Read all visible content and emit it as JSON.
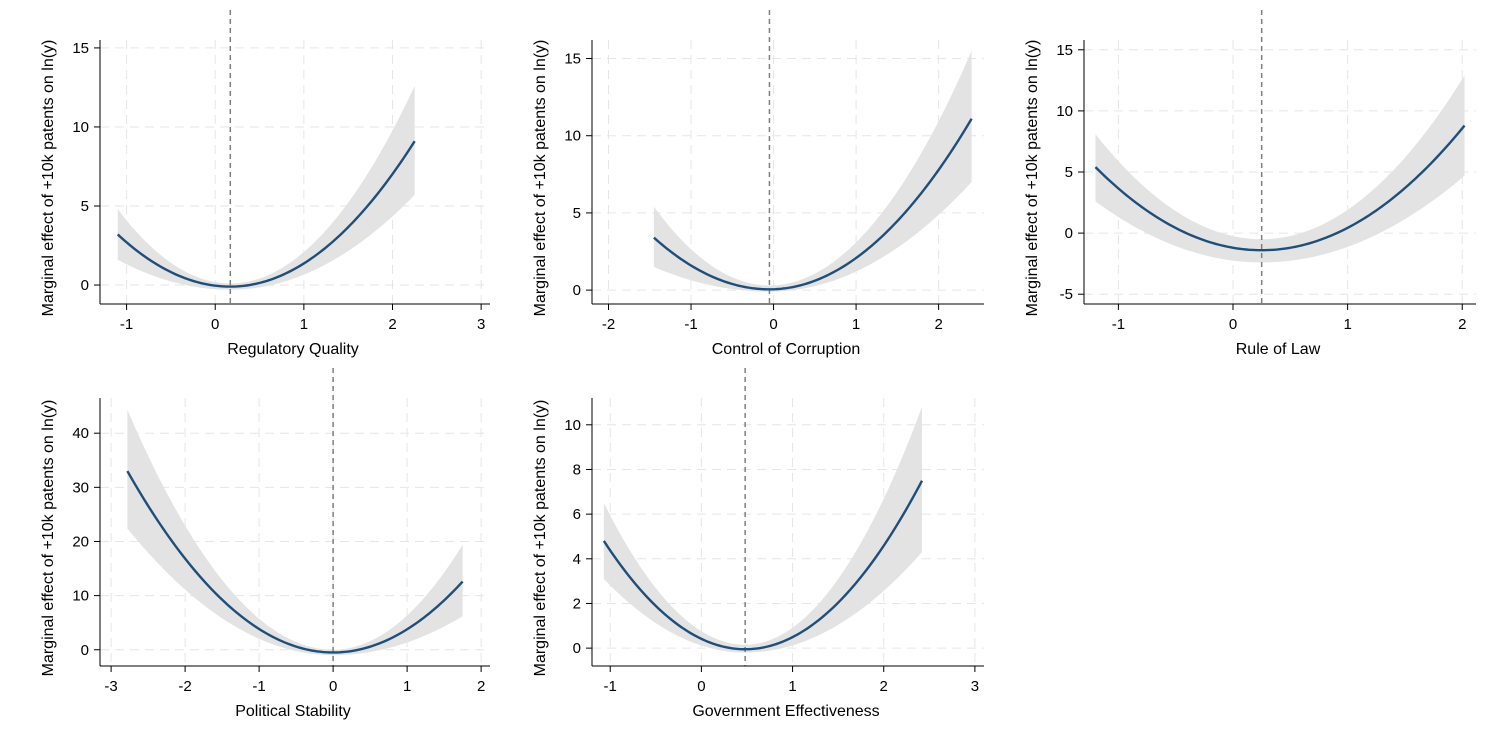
{
  "chart_data": [
    {
      "type": "line",
      "xlabel": "Regulatory Quality",
      "ylabel": "Marginal effect of +10k patents on ln(y)",
      "xticks": [
        -1,
        0,
        1,
        2,
        3
      ],
      "yticks": [
        0,
        5,
        10,
        15
      ],
      "xlim": [
        -1.3,
        3.1
      ],
      "ylim": [
        -1.2,
        15.5
      ],
      "xrange": [
        -1.1,
        2.25
      ],
      "vline": 0.17,
      "curve": [
        [
          -1.1,
          3.2
        ],
        [
          0.17,
          -0.1
        ],
        [
          2.25,
          9.1
        ]
      ],
      "ci_lower": [
        [
          -1.1,
          1.6
        ],
        [
          0.17,
          -0.3
        ],
        [
          2.25,
          5.7
        ]
      ],
      "ci_upper": [
        [
          -1.1,
          4.8
        ],
        [
          0.17,
          0.1
        ],
        [
          2.25,
          12.6
        ]
      ],
      "grid": true
    },
    {
      "type": "line",
      "xlabel": "Control of Corruption",
      "ylabel": "Marginal effect of +10k patents on ln(y)",
      "xticks": [
        -2,
        -1,
        0,
        1,
        2
      ],
      "yticks": [
        0,
        5,
        10,
        15
      ],
      "xlim": [
        -2.2,
        2.55
      ],
      "ylim": [
        -0.9,
        16.2
      ],
      "xrange": [
        -1.45,
        2.4
      ],
      "vline": -0.05,
      "curve": [
        [
          -1.45,
          3.4
        ],
        [
          -0.05,
          0.05
        ],
        [
          2.4,
          11.1
        ]
      ],
      "ci_lower": [
        [
          -1.45,
          1.5
        ],
        [
          -0.05,
          -0.1
        ],
        [
          2.4,
          7.0
        ]
      ],
      "ci_upper": [
        [
          -1.45,
          5.4
        ],
        [
          -0.05,
          0.3
        ],
        [
          2.4,
          15.5
        ]
      ],
      "grid": true
    },
    {
      "type": "line",
      "xlabel": "Rule of Law",
      "ylabel": "Marginal effect of +10k patents on ln(y)",
      "xticks": [
        -1,
        0,
        1,
        2
      ],
      "yticks": [
        -5,
        0,
        5,
        10,
        15
      ],
      "xlim": [
        -1.3,
        2.12
      ],
      "ylim": [
        -5.8,
        15.8
      ],
      "xrange": [
        -1.2,
        2.02
      ],
      "vline": 0.25,
      "curve": [
        [
          -1.2,
          5.4
        ],
        [
          0.25,
          -1.4
        ],
        [
          2.02,
          8.8
        ]
      ],
      "ci_lower": [
        [
          -1.2,
          2.6
        ],
        [
          0.25,
          -2.4
        ],
        [
          2.02,
          4.7
        ]
      ],
      "ci_upper": [
        [
          -1.2,
          8.1
        ],
        [
          0.25,
          -0.5
        ],
        [
          2.02,
          12.9
        ]
      ],
      "grid": true
    },
    {
      "type": "line",
      "xlabel": "Political Stability",
      "ylabel": "Marginal effect of +10k patents on ln(y)",
      "xticks": [
        -3,
        -2,
        -1,
        0,
        1,
        2
      ],
      "yticks": [
        0,
        10,
        20,
        30,
        40
      ],
      "xlim": [
        -3.15,
        2.12
      ],
      "ylim": [
        -3.0,
        46.5
      ],
      "xrange": [
        -2.78,
        1.75
      ],
      "vline": 0.0,
      "curve": [
        [
          -2.78,
          33.0
        ],
        [
          0.0,
          -0.5
        ],
        [
          1.75,
          12.6
        ]
      ],
      "ci_lower": [
        [
          -2.78,
          22.4
        ],
        [
          0.0,
          -1.0
        ],
        [
          1.75,
          6.2
        ]
      ],
      "ci_upper": [
        [
          -2.78,
          44.3
        ],
        [
          0.0,
          0.0
        ],
        [
          1.75,
          19.4
        ]
      ],
      "grid": true
    },
    {
      "type": "line",
      "xlabel": "Government Effectiveness",
      "ylabel": "Marginal effect of +10k patents on ln(y)",
      "xticks": [
        -1,
        0,
        1,
        2,
        3
      ],
      "yticks": [
        0,
        2,
        4,
        6,
        8,
        10
      ],
      "xlim": [
        -1.2,
        3.1
      ],
      "ylim": [
        -0.8,
        11.2
      ],
      "xrange": [
        -1.07,
        2.42
      ],
      "vline": 0.48,
      "curve": [
        [
          -1.07,
          4.8
        ],
        [
          0.48,
          -0.05
        ],
        [
          2.42,
          7.5
        ]
      ],
      "ci_lower": [
        [
          -1.07,
          3.1
        ],
        [
          0.48,
          -0.2
        ],
        [
          2.42,
          4.3
        ]
      ],
      "ci_upper": [
        [
          -1.07,
          6.5
        ],
        [
          0.48,
          0.15
        ],
        [
          2.42,
          10.8
        ]
      ],
      "grid": true
    }
  ]
}
